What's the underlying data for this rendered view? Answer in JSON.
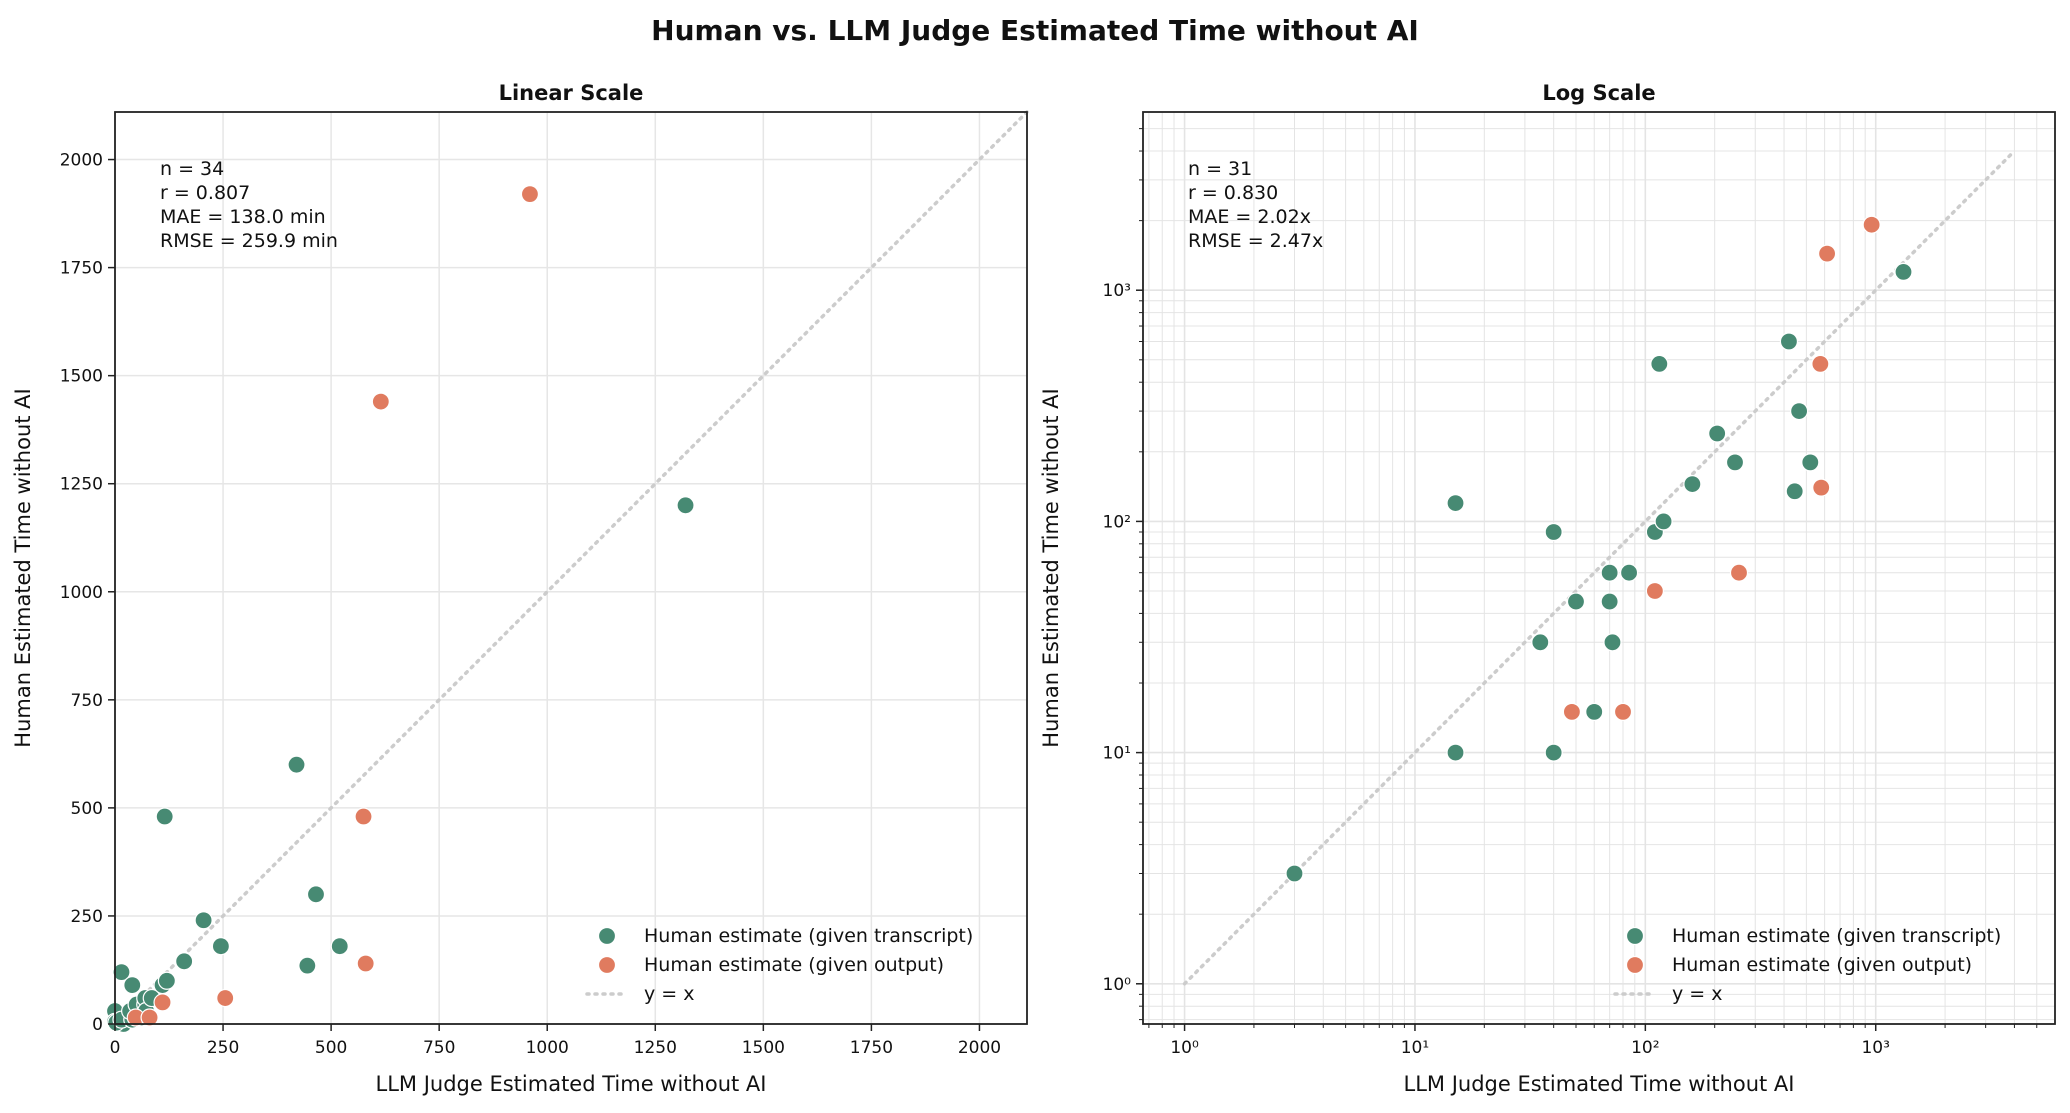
{
  "title": "Human vs. LLM Judge Estimated Time without AI",
  "colors": {
    "transcript": "#478a73",
    "output": "#e07b5f",
    "identity": "#cccccc"
  },
  "chart_data": [
    {
      "type": "scatter",
      "title": "Linear Scale",
      "xlabel": "LLM Judge Estimated Time without AI",
      "ylabel": "Human Estimated Time without AI",
      "xscale": "linear",
      "yscale": "linear",
      "xlim": [
        0,
        2110
      ],
      "ylim": [
        0,
        2110
      ],
      "xticks": [
        0,
        250,
        500,
        750,
        1000,
        1250,
        1500,
        1750,
        2000
      ],
      "xtick_labels": [
        "0",
        "250",
        "500",
        "750",
        "1000",
        "1250",
        "1500",
        "1750",
        "2000"
      ],
      "yticks": [
        0,
        250,
        500,
        750,
        1000,
        1250,
        1500,
        1750,
        2000
      ],
      "ytick_labels": [
        "0",
        "250",
        "500",
        "750",
        "1000",
        "1250",
        "1500",
        "1750",
        "2000"
      ],
      "grid": true,
      "annotation": [
        "n = 34",
        "r = 0.807",
        "MAE = 138.0 min",
        "RMSE = 259.9 min"
      ],
      "legend_position": "bottom-right",
      "legend": [
        "Human estimate (given transcript)",
        "Human estimate (given output)",
        "y = x"
      ],
      "identity_line": [
        0,
        2110
      ],
      "series": [
        {
          "name": "Human estimate (given transcript)",
          "points": [
            [
              0,
              30
            ],
            [
              0,
              5
            ],
            [
              20,
              0
            ],
            [
              3,
              3
            ],
            [
              15,
              10
            ],
            [
              40,
              10
            ],
            [
              15,
              120
            ],
            [
              40,
              90
            ],
            [
              35,
              30
            ],
            [
              50,
              45
            ],
            [
              70,
              45
            ],
            [
              70,
              60
            ],
            [
              60,
              15
            ],
            [
              72,
              30
            ],
            [
              85,
              60
            ],
            [
              110,
              90
            ],
            [
              120,
              100
            ],
            [
              115,
              480
            ],
            [
              160,
              145
            ],
            [
              205,
              240
            ],
            [
              245,
              180
            ],
            [
              420,
              600
            ],
            [
              445,
              135
            ],
            [
              465,
              300
            ],
            [
              520,
              180
            ],
            [
              1320,
              1200
            ]
          ]
        },
        {
          "name": "Human estimate (given output)",
          "points": [
            [
              48,
              15
            ],
            [
              80,
              15
            ],
            [
              110,
              50
            ],
            [
              255,
              60
            ],
            [
              580,
              140
            ],
            [
              575,
              480
            ],
            [
              615,
              1440
            ],
            [
              960,
              1920
            ]
          ]
        }
      ]
    },
    {
      "type": "scatter",
      "title": "Log Scale",
      "xlabel": "LLM Judge Estimated Time without AI",
      "ylabel": "Human Estimated Time without AI",
      "xscale": "log",
      "yscale": "log",
      "xlim": [
        0.66,
        6000
      ],
      "ylim": [
        0.67,
        5900
      ],
      "xticks": [
        1,
        10,
        100,
        1000
      ],
      "xtick_labels": [
        "10^0",
        "10^1",
        "10^2",
        "10^3"
      ],
      "yticks": [
        1,
        10,
        100,
        1000
      ],
      "ytick_labels": [
        "10^0",
        "10^1",
        "10^2",
        "10^3"
      ],
      "grid": true,
      "annotation": [
        "n = 31",
        "r = 0.830",
        "MAE = 2.02x",
        "RMSE = 2.47x"
      ],
      "legend_position": "bottom-right",
      "legend": [
        "Human estimate (given transcript)",
        "Human estimate (given output)",
        "y = x"
      ],
      "identity_line": [
        1,
        4000
      ],
      "series": [
        {
          "name": "Human estimate (given transcript)",
          "points": [
            [
              3,
              3
            ],
            [
              15,
              10
            ],
            [
              40,
              10
            ],
            [
              15,
              120
            ],
            [
              40,
              90
            ],
            [
              35,
              30
            ],
            [
              50,
              45
            ],
            [
              70,
              45
            ],
            [
              70,
              60
            ],
            [
              60,
              15
            ],
            [
              72,
              30
            ],
            [
              85,
              60
            ],
            [
              110,
              90
            ],
            [
              120,
              100
            ],
            [
              115,
              480
            ],
            [
              160,
              145
            ],
            [
              205,
              240
            ],
            [
              245,
              180
            ],
            [
              420,
              600
            ],
            [
              445,
              135
            ],
            [
              465,
              300
            ],
            [
              520,
              180
            ],
            [
              1320,
              1200
            ]
          ]
        },
        {
          "name": "Human estimate (given output)",
          "points": [
            [
              48,
              15
            ],
            [
              80,
              15
            ],
            [
              110,
              50
            ],
            [
              255,
              60
            ],
            [
              580,
              140
            ],
            [
              575,
              480
            ],
            [
              615,
              1440
            ],
            [
              960,
              1920
            ]
          ]
        }
      ]
    }
  ]
}
